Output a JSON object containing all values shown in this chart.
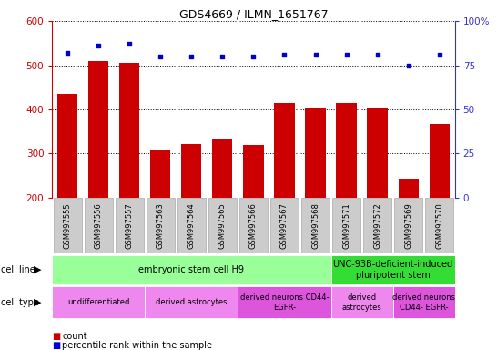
{
  "title": "GDS4669 / ILMN_1651767",
  "samples": [
    "GSM997555",
    "GSM997556",
    "GSM997557",
    "GSM997563",
    "GSM997564",
    "GSM997565",
    "GSM997566",
    "GSM997567",
    "GSM997568",
    "GSM997571",
    "GSM997572",
    "GSM997569",
    "GSM997570"
  ],
  "counts": [
    435,
    510,
    505,
    308,
    322,
    335,
    320,
    415,
    405,
    415,
    402,
    243,
    368
  ],
  "percentiles": [
    82,
    86,
    87,
    80,
    80,
    80,
    80,
    81,
    81,
    81,
    81,
    75,
    81
  ],
  "ylim_left": [
    200,
    600
  ],
  "ylim_right": [
    0,
    100
  ],
  "bar_color": "#cc0000",
  "dot_color": "#0000cc",
  "cell_line_groups": [
    {
      "label": "embryonic stem cell H9",
      "start": 0,
      "end": 9,
      "color": "#99ff99"
    },
    {
      "label": "UNC-93B-deficient-induced\npluripotent stem",
      "start": 9,
      "end": 13,
      "color": "#33dd33"
    }
  ],
  "cell_type_groups": [
    {
      "label": "undifferentiated",
      "start": 0,
      "end": 3,
      "color": "#ee88ee"
    },
    {
      "label": "derived astrocytes",
      "start": 3,
      "end": 6,
      "color": "#ee88ee"
    },
    {
      "label": "derived neurons CD44-\nEGFR-",
      "start": 6,
      "end": 9,
      "color": "#dd55dd"
    },
    {
      "label": "derived\nastrocytes",
      "start": 9,
      "end": 11,
      "color": "#ee88ee"
    },
    {
      "label": "derived neurons\nCD44- EGFR-",
      "start": 11,
      "end": 13,
      "color": "#dd55dd"
    }
  ],
  "left_ytick_color": "#cc0000",
  "right_ytick_color": "#3333cc",
  "left_yticks": [
    200,
    300,
    400,
    500,
    600
  ],
  "right_yticks": [
    0,
    25,
    50,
    75,
    100
  ],
  "right_ytick_labels": [
    "0",
    "25",
    "50",
    "75",
    "100%"
  ]
}
